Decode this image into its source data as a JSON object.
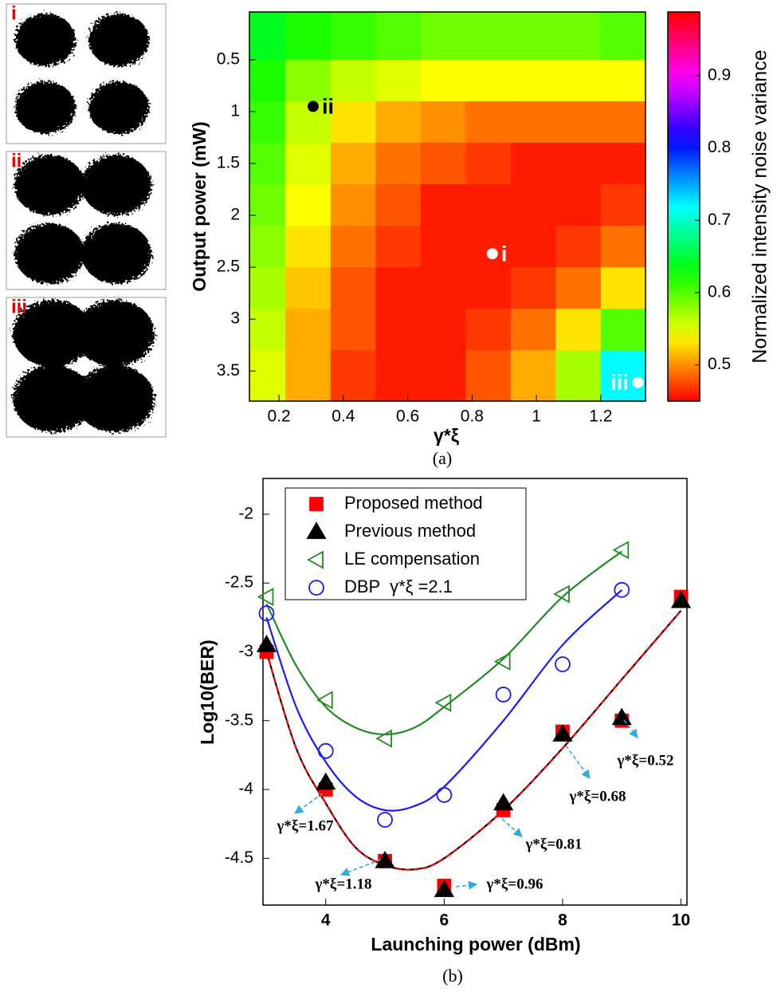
{
  "chart_data": [
    {
      "type": "heatmap",
      "x_label": "γ*ξ",
      "y_label": "Output power (mW)",
      "caption": "(a)",
      "x": [
        0.15,
        0.29,
        0.43,
        0.57,
        0.71,
        0.85,
        0.99,
        1.13,
        1.27
      ],
      "y": [
        0.3,
        0.7,
        1.1,
        1.5,
        1.9,
        2.3,
        2.7,
        3.1,
        3.5
      ],
      "z": [
        [
          0.64,
          0.62,
          0.61,
          0.6,
          0.59,
          0.59,
          0.59,
          0.59,
          0.6
        ],
        [
          0.62,
          0.58,
          0.56,
          0.55,
          0.54,
          0.54,
          0.54,
          0.54,
          0.54
        ],
        [
          0.61,
          0.56,
          0.53,
          0.51,
          0.5,
          0.49,
          0.49,
          0.49,
          0.49
        ],
        [
          0.6,
          0.55,
          0.51,
          0.49,
          0.48,
          0.47,
          0.46,
          0.46,
          0.46
        ],
        [
          0.59,
          0.54,
          0.5,
          0.48,
          0.46,
          0.46,
          0.46,
          0.46,
          0.47
        ],
        [
          0.58,
          0.53,
          0.49,
          0.47,
          0.46,
          0.46,
          0.46,
          0.47,
          0.49
        ],
        [
          0.57,
          0.52,
          0.48,
          0.46,
          0.46,
          0.46,
          0.47,
          0.49,
          0.53
        ],
        [
          0.56,
          0.51,
          0.48,
          0.46,
          0.46,
          0.47,
          0.49,
          0.53,
          0.6
        ],
        [
          0.55,
          0.51,
          0.47,
          0.46,
          0.46,
          0.48,
          0.51,
          0.57,
          0.72
        ]
      ],
      "xlim": [
        0.108,
        1.339
      ],
      "ylim": [
        0.04,
        3.79
      ],
      "y_reversed": true,
      "xticks": [
        0.2,
        0.4,
        0.6,
        0.8,
        1,
        1.2
      ],
      "yticks": [
        0.5,
        1,
        1.5,
        2,
        2.5,
        3,
        3.5
      ],
      "colormap": "hsv",
      "clim": [
        0.45,
        0.988
      ],
      "colorbar_ticks": [
        0.5,
        0.6,
        0.7,
        0.8,
        0.9
      ],
      "colorbar_label": "Normalized intensity noise variance",
      "points": [
        {
          "label": "i",
          "x": 0.863,
          "y": 2.37,
          "color": "#ffffff"
        },
        {
          "label": "ii",
          "x": 0.306,
          "y": 0.95,
          "color": "#000000"
        },
        {
          "label": "iii",
          "x": 1.316,
          "y": 3.61,
          "color": "#ffffff"
        }
      ],
      "inset_labels": [
        "i",
        "ii",
        "iii"
      ]
    },
    {
      "type": "line",
      "x_label": "Launching power (dBm)",
      "y_label": "Log10(BER)",
      "caption": "(b)",
      "xlim": [
        2.94,
        10.1
      ],
      "ylim": [
        -4.84,
        -1.74
      ],
      "xticks": [
        4,
        6,
        8,
        10
      ],
      "yticks": [
        -4.5,
        -4,
        -3.5,
        -3,
        -2.5,
        -2
      ],
      "legend": "upper left",
      "series": [
        {
          "name": "Proposed method",
          "color": "#ff0000",
          "marker": "square",
          "filled": true,
          "x": [
            3,
            4,
            5,
            6,
            7,
            8,
            9,
            10
          ],
          "values": [
            -3.0,
            -4.0,
            -4.52,
            -4.7,
            -4.15,
            -3.58,
            -3.5,
            -2.6
          ]
        },
        {
          "name": "Previous method",
          "color": "#000000",
          "marker": "triangle",
          "filled": true,
          "x": [
            3,
            4,
            5,
            6,
            7,
            8,
            9,
            10
          ],
          "values": [
            -2.95,
            -3.95,
            -4.52,
            -4.73,
            -4.1,
            -3.6,
            -3.48,
            -2.63
          ]
        },
        {
          "name": "LE compensation",
          "color": "#228b22",
          "marker": "triangle-left",
          "filled": false,
          "x": [
            3,
            4,
            5,
            6,
            7,
            8,
            9
          ],
          "values": [
            -2.6,
            -3.35,
            -3.63,
            -3.37,
            -3.07,
            -2.58,
            -2.26
          ]
        },
        {
          "name": "DBP  γ*ξ =2.1",
          "color": "#1a1aff",
          "marker": "circle",
          "filled": false,
          "x": [
            3,
            4,
            5,
            6,
            7,
            8,
            9
          ],
          "values": [
            -2.72,
            -3.72,
            -4.22,
            -4.04,
            -3.31,
            -3.09,
            -2.55
          ]
        },
        {
          "color": "#228b22",
          "line": "solid",
          "x": [
            3,
            3.5,
            4,
            4.5,
            5,
            5.5,
            6,
            7,
            8,
            9
          ],
          "values": [
            -2.65,
            -3.1,
            -3.4,
            -3.55,
            -3.6,
            -3.55,
            -3.4,
            -3.05,
            -2.6,
            -2.27
          ]
        },
        {
          "color": "#1a1aff",
          "line": "solid",
          "x": [
            3,
            3.5,
            4,
            4.5,
            5,
            5.5,
            6,
            7,
            8,
            9
          ],
          "values": [
            -2.75,
            -3.4,
            -3.8,
            -4.05,
            -4.15,
            -4.12,
            -3.98,
            -3.5,
            -2.95,
            -2.55
          ]
        },
        {
          "color": "#000000",
          "line": "solid",
          "x": [
            3,
            3.5,
            4,
            4.5,
            5,
            5.5,
            6,
            7,
            8,
            9,
            10
          ],
          "values": [
            -3.0,
            -3.7,
            -4.1,
            -4.42,
            -4.55,
            -4.58,
            -4.5,
            -4.15,
            -3.7,
            -3.2,
            -2.7
          ]
        },
        {
          "color": "#ff0000",
          "line": "dashed",
          "x": [
            3,
            3.5,
            4,
            4.5,
            5,
            5.5,
            6,
            7,
            8,
            9,
            10
          ],
          "values": [
            -3.0,
            -3.7,
            -4.1,
            -4.42,
            -4.55,
            -4.58,
            -4.5,
            -4.15,
            -3.7,
            -3.2,
            -2.7
          ]
        }
      ],
      "annotations": [
        "γ*ξ=1.67",
        "γ*ξ=1.18",
        "γ*ξ=0.96",
        "γ*ξ=0.81",
        "γ*ξ=0.68",
        "γ*ξ=0.52"
      ]
    }
  ]
}
